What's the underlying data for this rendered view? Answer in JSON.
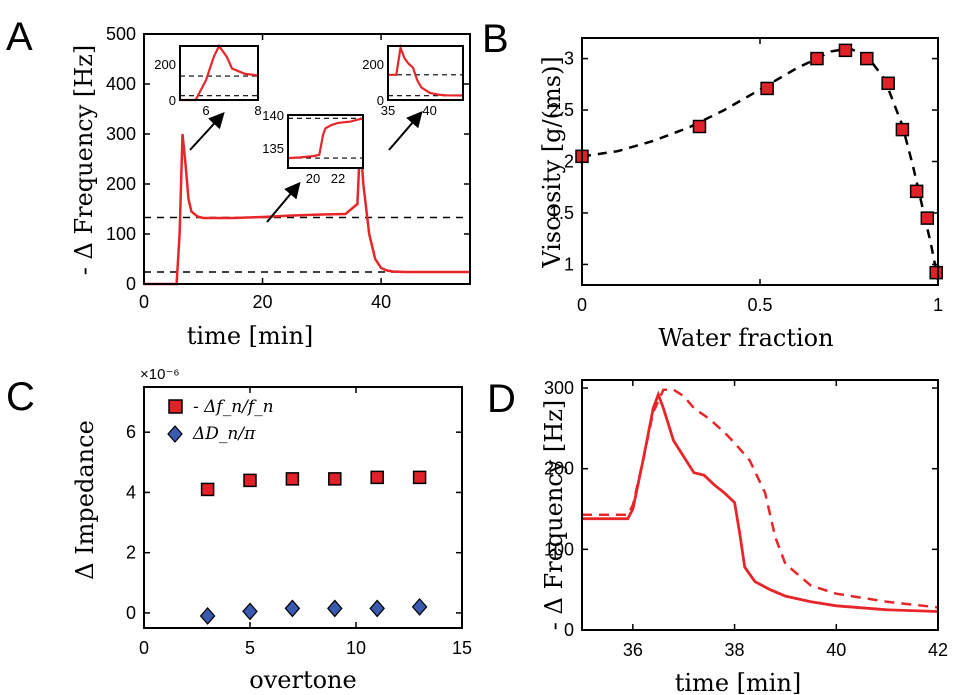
{
  "colors": {
    "curve": "#e8262a",
    "marker_fill": "#e02228",
    "diamond_fill": "#3a5ab0",
    "dashed": "#000000"
  },
  "panels": [
    {
      "letter": "A",
      "xlabel": "time [min]",
      "ylabel": "- Δ Frequency [Hz]"
    },
    {
      "letter": "B",
      "xlabel": "Water fraction",
      "ylabel": "Viscosity [g/(ms)]"
    },
    {
      "letter": "C",
      "xlabel": "overtone",
      "ylabel": "Δ Impedance",
      "multiplier": "×10⁻⁶"
    },
    {
      "letter": "D",
      "xlabel": "time [min]",
      "ylabel": "- Δ Frequency [Hz]"
    }
  ],
  "legend_C": [
    {
      "label": "- Δf_n/f_n",
      "marker": "square"
    },
    {
      "label": "ΔD_n/π",
      "marker": "diamond"
    }
  ],
  "chart_data": [
    {
      "panel": "A",
      "type": "line",
      "xlabel": "time [min]",
      "ylabel": "- Δ Frequency [Hz]",
      "xlim": [
        0,
        55
      ],
      "ylim": [
        0,
        500
      ],
      "xticks": [
        0,
        20,
        40
      ],
      "yticks": [
        0,
        100,
        200,
        300,
        400,
        500
      ],
      "series": [
        {
          "x": [
            0,
            5.5,
            6.0,
            6.5,
            7.0,
            7.5,
            8,
            9,
            10,
            12,
            15,
            20,
            25,
            30,
            34,
            36,
            36.5,
            37,
            38,
            39,
            40,
            41,
            42,
            44,
            48,
            55
          ],
          "y": [
            0,
            0,
            100,
            300,
            240,
            170,
            145,
            135,
            132,
            132,
            132,
            134,
            137,
            139,
            140,
            160,
            290,
            200,
            100,
            50,
            32,
            27,
            25,
            24,
            24,
            24
          ]
        }
      ],
      "reference_lines_y": [
        133,
        24
      ],
      "insets": [
        {
          "xlim": [
            5,
            8
          ],
          "ylim": [
            0,
            300
          ],
          "xticks": [
            6,
            8
          ],
          "yticks": [
            0,
            200
          ],
          "reference_lines_y": [
            24,
            133
          ],
          "x": [
            5,
            5.6,
            6.0,
            6.3,
            6.5,
            6.8,
            7.0,
            7.5,
            8
          ],
          "y": [
            0,
            0,
            110,
            240,
            300,
            240,
            175,
            145,
            137
          ]
        },
        {
          "xlim": [
            18,
            24
          ],
          "ylim": [
            132,
            140
          ],
          "xticks": [
            20,
            22
          ],
          "yticks": [
            135,
            140
          ],
          "reference_lines_y": [
            133.5,
            139.5
          ],
          "x": [
            18,
            19,
            20,
            20.5,
            20.8,
            21.0,
            21.5,
            22,
            23,
            24
          ],
          "y": [
            133.5,
            133.6,
            133.8,
            134,
            137,
            138,
            138.5,
            138.8,
            139,
            139.5
          ]
        },
        {
          "xlim": [
            35,
            44
          ],
          "ylim": [
            0,
            300
          ],
          "xticks": [
            35,
            40
          ],
          "yticks": [
            0,
            200
          ],
          "reference_lines_y": [
            24,
            140
          ],
          "x": [
            35,
            36,
            36.5,
            37,
            37.5,
            38,
            38.5,
            39,
            40,
            41,
            42,
            44
          ],
          "y": [
            140,
            140,
            290,
            230,
            200,
            180,
            110,
            70,
            40,
            30,
            26,
            25
          ]
        }
      ]
    },
    {
      "panel": "B",
      "type": "scatter",
      "xlabel": "Water fraction",
      "ylabel": "Viscosity [g/(ms)]",
      "xlim": [
        0,
        1
      ],
      "ylim": [
        0.8,
        3.2
      ],
      "xticks": [
        0,
        0.5,
        1
      ],
      "yticks": [
        1,
        1.5,
        2,
        2.5,
        3
      ],
      "points": {
        "x": [
          0,
          0.33,
          0.52,
          0.66,
          0.74,
          0.8,
          0.86,
          0.9,
          0.94,
          0.97,
          0.995
        ],
        "y": [
          2.05,
          2.34,
          2.71,
          3.0,
          3.08,
          3.0,
          2.76,
          2.31,
          1.71,
          1.45,
          0.92
        ]
      },
      "fit": {
        "x": [
          0,
          0.1,
          0.2,
          0.3,
          0.4,
          0.5,
          0.6,
          0.7,
          0.75,
          0.8,
          0.85,
          0.9,
          0.93,
          0.96,
          0.98,
          1.0
        ],
        "y": [
          2.05,
          2.1,
          2.2,
          2.33,
          2.5,
          2.7,
          2.9,
          3.07,
          3.1,
          3.03,
          2.8,
          2.35,
          1.95,
          1.5,
          1.2,
          0.85
        ]
      }
    },
    {
      "panel": "C",
      "type": "scatter",
      "xlabel": "overtone",
      "ylabel": "Δ Impedance",
      "xlim": [
        0,
        15
      ],
      "ylim": [
        -0.5,
        7.5
      ],
      "xticks": [
        0,
        5,
        10,
        15
      ],
      "yticks": [
        0,
        2,
        4,
        6
      ],
      "multiplier": "×10⁻⁶",
      "series": [
        {
          "name": "- Δf_n/f_n",
          "x": [
            3,
            5,
            7,
            9,
            11,
            13
          ],
          "y": [
            4.1,
            4.4,
            4.45,
            4.45,
            4.5,
            4.5
          ]
        },
        {
          "name": "ΔD_n/π",
          "x": [
            3,
            5,
            7,
            9,
            11,
            13
          ],
          "y": [
            -0.1,
            0.05,
            0.15,
            0.15,
            0.15,
            0.2
          ]
        }
      ]
    },
    {
      "panel": "D",
      "type": "line",
      "xlabel": "time [min]",
      "ylabel": "- Δ Frequency [Hz]",
      "xlim": [
        35,
        42
      ],
      "ylim": [
        0,
        310
      ],
      "xticks": [
        36,
        38,
        40,
        42
      ],
      "yticks": [
        0,
        100,
        200,
        300
      ],
      "series": [
        {
          "style": "solid",
          "x": [
            35,
            35.9,
            36.0,
            36.2,
            36.4,
            36.5,
            36.6,
            36.8,
            37.0,
            37.2,
            37.4,
            37.6,
            37.8,
            38.0,
            38.1,
            38.2,
            38.4,
            38.7,
            39,
            39.5,
            40,
            41,
            42
          ],
          "y": [
            138,
            138,
            150,
            210,
            275,
            292,
            275,
            235,
            215,
            195,
            192,
            180,
            170,
            158,
            120,
            78,
            60,
            50,
            42,
            35,
            30,
            25,
            23
          ]
        },
        {
          "style": "dashed",
          "x": [
            35,
            35.9,
            36.0,
            36.2,
            36.4,
            36.6,
            36.8,
            37.0,
            37.2,
            37.5,
            37.8,
            38.0,
            38.3,
            38.6,
            38.8,
            39,
            39.5,
            40,
            41,
            42
          ],
          "y": [
            143,
            143,
            155,
            210,
            270,
            298,
            298,
            290,
            275,
            262,
            245,
            232,
            210,
            170,
            115,
            82,
            55,
            45,
            35,
            28
          ]
        }
      ]
    }
  ]
}
